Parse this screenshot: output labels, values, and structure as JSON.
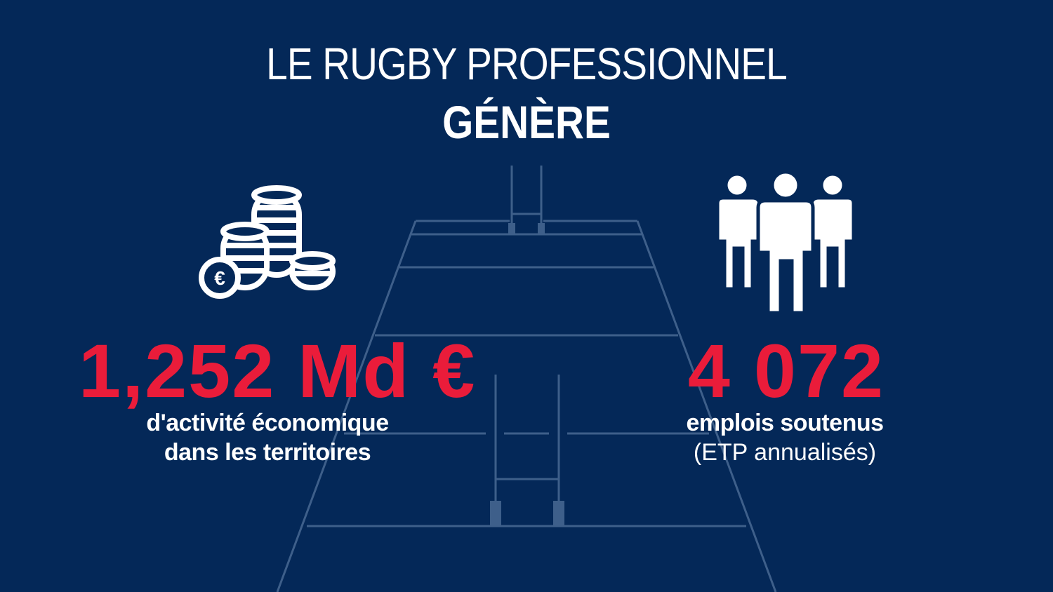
{
  "title": {
    "line1": "LE RUGBY PROFESSIONNEL",
    "line2": "GÉNÈRE"
  },
  "left_stat": {
    "value": "1,252 Md €",
    "caption_line1": "d'activité économique",
    "caption_line2": "dans les territoires",
    "icon": "euro-coins-stack-icon"
  },
  "right_stat": {
    "value": "4 072",
    "caption_line1": "emplois soutenus",
    "caption_line2": "(ETP annualisés)",
    "icon": "people-group-icon"
  },
  "colors": {
    "background": "#042858",
    "accent": "#ea1c3a",
    "text": "#ffffff",
    "field_lines": "#3e5f8a"
  }
}
